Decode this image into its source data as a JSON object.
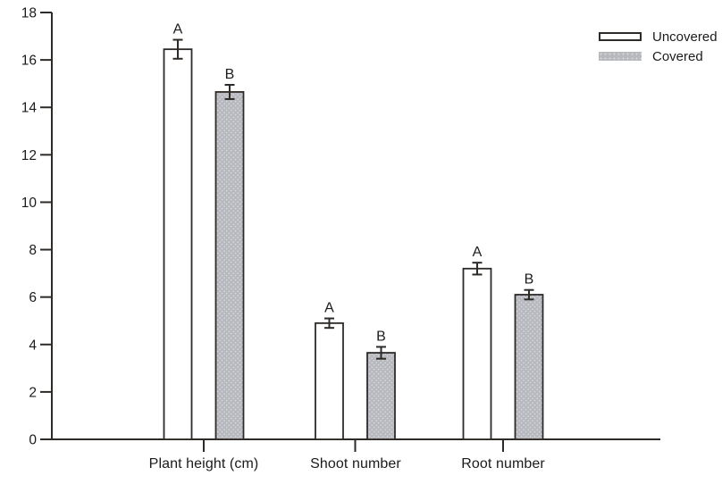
{
  "figure": {
    "background": "#ffffff"
  },
  "chart_data": {
    "type": "bar",
    "title": "",
    "xlabel": "",
    "ylabel": "",
    "grid": false,
    "legend_position": "top-right",
    "categories": [
      "Plant height (cm)",
      "Shoot number",
      "Root number"
    ],
    "series": [
      {
        "name": "Uncovered",
        "values": [
          16.45,
          4.9,
          7.2
        ],
        "errors": [
          0.4,
          0.2,
          0.25
        ],
        "letters": [
          "A",
          "A",
          "A"
        ],
        "fill": "#ffffff"
      },
      {
        "name": "Covered",
        "values": [
          14.65,
          3.65,
          6.1
        ],
        "errors": [
          0.3,
          0.25,
          0.2
        ],
        "letters": [
          "B",
          "B",
          "B"
        ],
        "fill": "#b8b9bf"
      }
    ],
    "ylim": [
      0,
      18
    ],
    "ytick_step": 2,
    "yticks": [
      0,
      2,
      4,
      6,
      8,
      10,
      12,
      14,
      16,
      18
    ]
  },
  "style": {
    "axis_color": "#2e2a27",
    "text_color": "#1b1b1b",
    "covered_dot_color": "#d9dade"
  }
}
